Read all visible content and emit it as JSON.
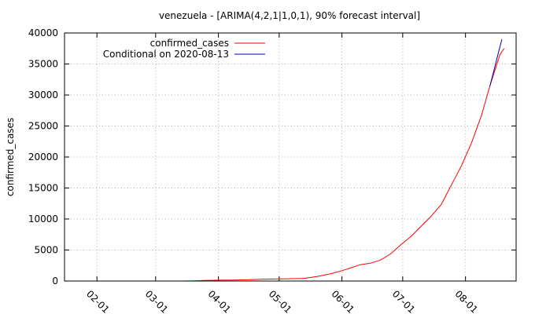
{
  "chart_data": {
    "type": "line",
    "title": "venezuela -  [ARIMA(4,2,1|1,0,1), 90% forecast interval]",
    "xlabel": "",
    "ylabel": "confirmed_cases",
    "x_axis_type": "date",
    "xlim": [
      "2020-01-16",
      "2020-08-26"
    ],
    "ylim": [
      0,
      40000
    ],
    "y_ticks": [
      0,
      5000,
      10000,
      15000,
      20000,
      25000,
      30000,
      35000,
      40000
    ],
    "x_ticks": [
      {
        "date": "2020-02-01",
        "label": "02-01"
      },
      {
        "date": "2020-03-01",
        "label": "03-01"
      },
      {
        "date": "2020-04-01",
        "label": "04-01"
      },
      {
        "date": "2020-05-01",
        "label": "05-01"
      },
      {
        "date": "2020-06-01",
        "label": "06-01"
      },
      {
        "date": "2020-07-01",
        "label": "07-01"
      },
      {
        "date": "2020-08-01",
        "label": "08-01"
      }
    ],
    "grid": true,
    "legend_position": "top-left",
    "series": [
      {
        "name": "confirmed_cases",
        "color": "#ff0000",
        "points": [
          [
            "2020-03-14",
            2
          ],
          [
            "2020-03-20",
            42
          ],
          [
            "2020-03-25",
            91
          ],
          [
            "2020-04-01",
            143
          ],
          [
            "2020-04-08",
            167
          ],
          [
            "2020-04-15",
            197
          ],
          [
            "2020-04-22",
            285
          ],
          [
            "2020-04-29",
            329
          ],
          [
            "2020-05-06",
            361
          ],
          [
            "2020-05-13",
            423
          ],
          [
            "2020-05-20",
            749
          ],
          [
            "2020-05-27",
            1211
          ],
          [
            "2020-06-01",
            1677
          ],
          [
            "2020-06-05",
            2087
          ],
          [
            "2020-06-10",
            2632
          ],
          [
            "2020-06-15",
            2879
          ],
          [
            "2020-06-20",
            3386
          ],
          [
            "2020-06-25",
            4366
          ],
          [
            "2020-06-30",
            5832
          ],
          [
            "2020-07-05",
            7169
          ],
          [
            "2020-07-10",
            8803
          ],
          [
            "2020-07-15",
            10428
          ],
          [
            "2020-07-20",
            12334
          ],
          [
            "2020-07-25",
            15463
          ],
          [
            "2020-07-30",
            18574
          ],
          [
            "2020-08-04",
            22299
          ],
          [
            "2020-08-09",
            26800
          ],
          [
            "2020-08-13",
            31381
          ],
          [
            "2020-08-18",
            36500
          ],
          [
            "2020-08-20",
            37500
          ]
        ]
      },
      {
        "name": "Conditional on 2020-08-13",
        "color": "#0000bb",
        "points": [
          [
            "2020-08-13",
            31381
          ],
          [
            "2020-08-15",
            33900
          ],
          [
            "2020-08-17",
            36500
          ],
          [
            "2020-08-19",
            39000
          ]
        ]
      }
    ]
  }
}
